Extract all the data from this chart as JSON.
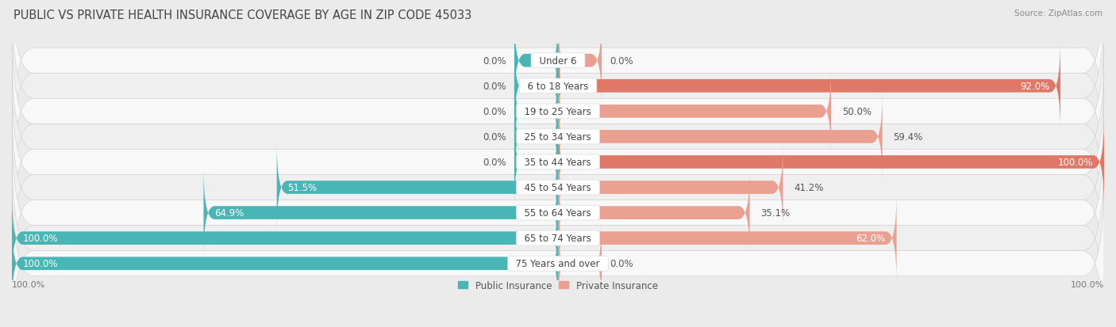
{
  "title": "PUBLIC VS PRIVATE HEALTH INSURANCE COVERAGE BY AGE IN ZIP CODE 45033",
  "source": "Source: ZipAtlas.com",
  "categories": [
    "Under 6",
    "6 to 18 Years",
    "19 to 25 Years",
    "25 to 34 Years",
    "35 to 44 Years",
    "45 to 54 Years",
    "55 to 64 Years",
    "65 to 74 Years",
    "75 Years and over"
  ],
  "public_values": [
    0.0,
    0.0,
    0.0,
    0.0,
    0.0,
    51.5,
    64.9,
    100.0,
    100.0
  ],
  "private_values": [
    0.0,
    92.0,
    50.0,
    59.4,
    100.0,
    41.2,
    35.1,
    62.0,
    0.0
  ],
  "public_color": "#4ab5b5",
  "private_color": "#e07868",
  "private_color_light": "#eaa090",
  "bg_color": "#ebebeb",
  "row_color_even": "#f8f8f8",
  "row_color_odd": "#efefef",
  "bar_height": 0.52,
  "max_val": 100,
  "title_fontsize": 10.5,
  "label_fontsize": 8.5,
  "tick_fontsize": 8,
  "legend_fontsize": 8.5,
  "category_fontsize": 8.5
}
